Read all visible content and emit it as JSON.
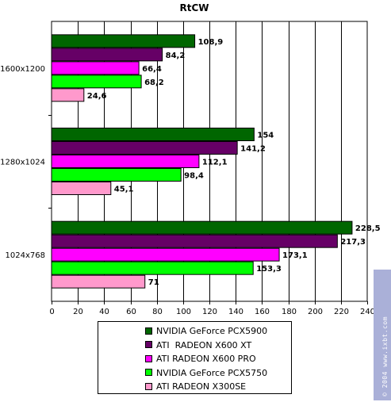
{
  "chart_data": {
    "type": "bar",
    "orientation": "horizontal",
    "title": "RtCW",
    "categories": [
      "1600x1200",
      "1280x1024",
      "1024x768"
    ],
    "series": [
      {
        "name": "NVIDIA GeForce PCX5900",
        "color": "#006600",
        "values": [
          108.9,
          154,
          228.5
        ],
        "labels": [
          "108,9",
          "154",
          "228,5"
        ]
      },
      {
        "name": "ATI  RADEON X600 XT",
        "color": "#660066",
        "values": [
          84.2,
          141.2,
          217.3
        ],
        "labels": [
          "84,2",
          "141,2",
          "217,3"
        ]
      },
      {
        "name": "ATI RADEON X600 PRO",
        "color": "#ff00ff",
        "values": [
          66.4,
          112.1,
          173.1
        ],
        "labels": [
          "66,4",
          "112,1",
          "173,1"
        ]
      },
      {
        "name": "NVIDIA GeForce PCX5750",
        "color": "#00ff00",
        "values": [
          68.2,
          98.4,
          153.3
        ],
        "labels": [
          "68,2",
          "98,4",
          "153,3"
        ]
      },
      {
        "name": "ATI RADEON X300SE",
        "color": "#ff99cc",
        "values": [
          24.6,
          45.1,
          71
        ],
        "labels": [
          "24,6",
          "45,1",
          "71"
        ]
      }
    ],
    "xlim": [
      0,
      240
    ],
    "xticks": [
      0,
      20,
      40,
      60,
      80,
      100,
      120,
      140,
      160,
      180,
      200,
      220,
      240
    ],
    "grid": true,
    "legend_position": "bottom"
  },
  "watermark": "© 2004 www.ixbt.com"
}
